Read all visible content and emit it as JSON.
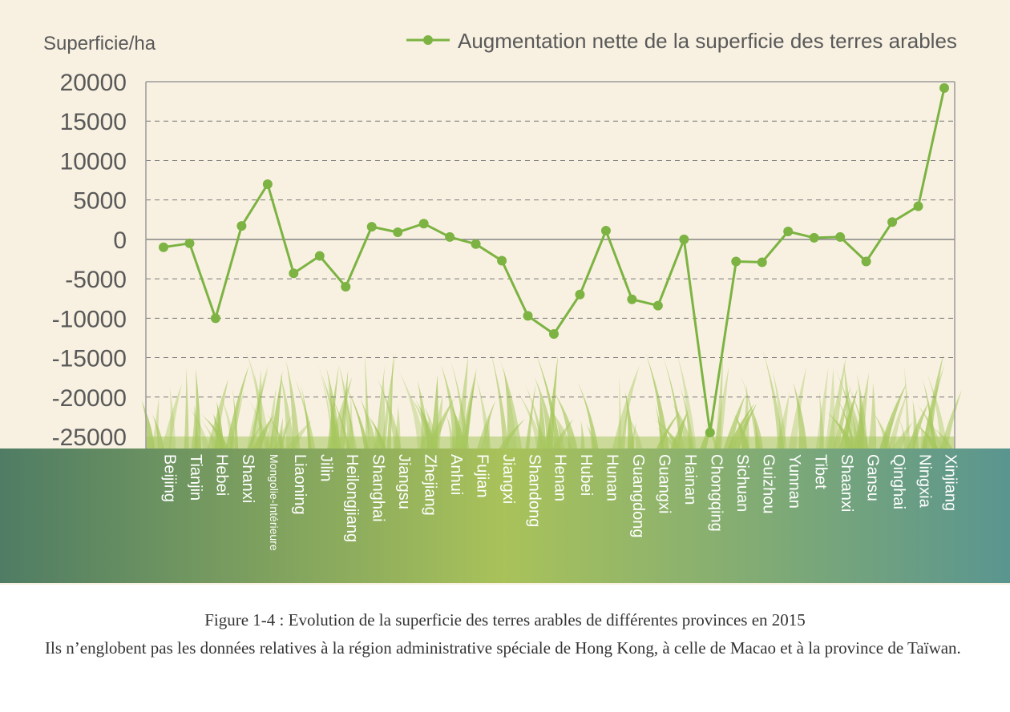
{
  "chart_data": {
    "type": "line",
    "ylabel": "Superficie/ha",
    "ylim": [
      -25000,
      20000
    ],
    "yticks": [
      20000,
      15000,
      10000,
      5000,
      0,
      -5000,
      -10000,
      -15000,
      -20000,
      -25000
    ],
    "grid": true,
    "legend_position": "top-right",
    "categories": [
      "Beijing",
      "Tianjin",
      "Hebei",
      "Shanxi",
      "Mongolie-Intérieure",
      "Liaoning",
      "Jilin",
      "Heilongjiang",
      "Shanghai",
      "Jiangsu",
      "Zhejiang",
      "Anhui",
      "Fujian",
      "Jiangxi",
      "Shandong",
      "Henan",
      "Hubei",
      "Hunan",
      "Guangdong",
      "Guangxi",
      "Hainan",
      "Chongqing",
      "Sichuan",
      "Guizhou",
      "Yunnan",
      "Tibet",
      "Shaanxi",
      "Gansu",
      "Qinghai",
      "Ningxia",
      "Xinjiang"
    ],
    "series": [
      {
        "name": "Augmentation nette de la superficie des terres arables",
        "color": "#7cb342",
        "values": [
          -1000,
          -500,
          -10000,
          1700,
          7000,
          -4300,
          -2100,
          -6000,
          1600,
          900,
          2000,
          300,
          -600,
          -2700,
          -9700,
          -12000,
          -7000,
          1100,
          -7600,
          -8400,
          0,
          -24500,
          -2800,
          -2900,
          1000,
          200,
          300,
          -2800,
          2200,
          4200,
          19200
        ]
      }
    ],
    "colors": {
      "background": "#f8f1e1",
      "grid": "#7a7a7a",
      "axis": "#9a9a9a",
      "tick_text": "#595959",
      "band_left": "#4f7c64",
      "band_mid": "#a9c25a",
      "band_right": "#5a958f",
      "grass": "#a6c75e",
      "category_text": "#ffffff"
    }
  },
  "caption": {
    "title": "Figure 1-4 : Evolution de la superficie des terres arables de différentes provinces en 2015",
    "note": "Ils n’englobent pas les données relatives à la région administrative spéciale de Hong Kong, à celle de Macao et à la province de Taïwan."
  }
}
